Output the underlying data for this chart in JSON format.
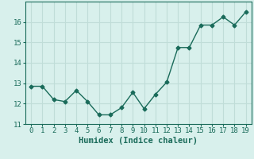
{
  "x": [
    0,
    1,
    2,
    3,
    4,
    5,
    6,
    7,
    8,
    9,
    10,
    11,
    12,
    13,
    14,
    15,
    16,
    17,
    18,
    19
  ],
  "y": [
    12.85,
    12.85,
    12.2,
    12.1,
    12.65,
    12.1,
    11.45,
    11.45,
    11.8,
    12.55,
    11.75,
    12.45,
    13.05,
    14.75,
    14.75,
    15.85,
    15.85,
    16.25,
    15.85,
    16.5
  ],
  "line_color": "#1a6b5a",
  "marker": "D",
  "marker_size": 2.5,
  "bg_color": "#d8f0ec",
  "grid_color": "#c0ddd8",
  "xlabel": "Humidex (Indice chaleur)",
  "ylim": [
    11.0,
    17.0
  ],
  "xlim": [
    -0.5,
    19.5
  ],
  "yticks": [
    11,
    12,
    13,
    14,
    15,
    16
  ],
  "xticks": [
    0,
    1,
    2,
    3,
    4,
    5,
    6,
    7,
    8,
    9,
    10,
    11,
    12,
    13,
    14,
    15,
    16,
    17,
    18,
    19
  ],
  "tick_color": "#1a6b5a",
  "label_fontsize": 7.5,
  "tick_fontsize": 6.5
}
